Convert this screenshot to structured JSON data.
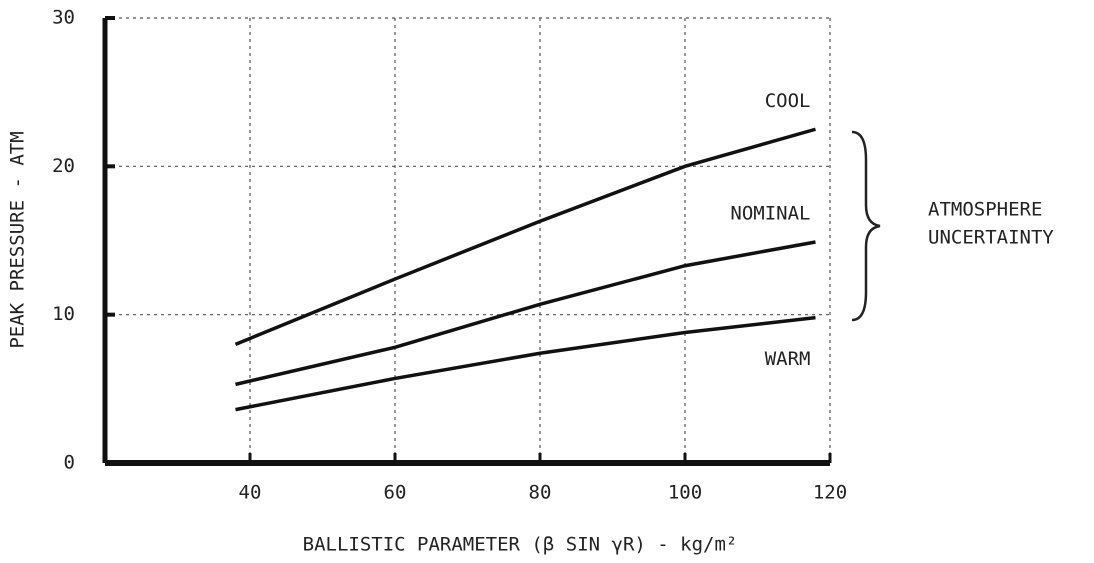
{
  "chart_data": {
    "type": "line",
    "x_label": "BALLISTIC PARAMETER (β SIN γR) - kg/m²",
    "y_label": "PEAK PRESSURE - ATM",
    "annotation": [
      "ATMOSPHERE",
      "UNCERTAINTY"
    ],
    "x": [
      38,
      60,
      80,
      100,
      118
    ],
    "series": [
      {
        "name": "COOL",
        "color": "#111111",
        "values": [
          8.0,
          12.4,
          16.3,
          20.0,
          22.5
        ]
      },
      {
        "name": "NOMINAL",
        "color": "#111111",
        "values": [
          5.3,
          7.8,
          10.7,
          13.3,
          14.9
        ]
      },
      {
        "name": "WARM",
        "color": "#111111",
        "values": [
          3.6,
          5.7,
          7.4,
          8.8,
          9.8
        ]
      }
    ],
    "xlim": [
      20,
      120
    ],
    "xticks": [
      40,
      60,
      80,
      100,
      120
    ],
    "ylim": [
      0,
      30
    ],
    "yticks": [
      0,
      10,
      20,
      30
    ],
    "grid": true
  }
}
